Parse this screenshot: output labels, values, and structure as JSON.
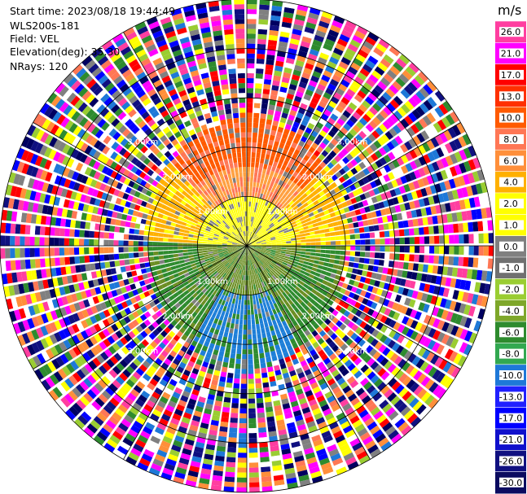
{
  "header": {
    "start_time": "Start time: 2023/08/18 19:44:49",
    "instrument": "WLS200s-181",
    "field": "Field: VEL",
    "elevation": "Elevation(deg): 35.30",
    "nrays": "NRays: 120"
  },
  "chart_data": {
    "type": "polar-ppi",
    "field": "VEL",
    "unit": "m/s",
    "nrays": 120,
    "elevation_deg": 35.3,
    "range_ring_km": [
      1.0,
      2.0,
      3.0
    ],
    "range_ring_labels": [
      "1.00km",
      "2.00km",
      "3.00km"
    ],
    "max_range_km": 5.0,
    "colorbar": {
      "unit": "m/s",
      "ticks": [
        26.0,
        21.0,
        17.0,
        13.0,
        10.0,
        8.0,
        6.0,
        4.0,
        2.0,
        1.0,
        0.0,
        -1.0,
        -2.0,
        -4.0,
        -6.0,
        -8.0,
        -10.0,
        -13.0,
        -17.0,
        -21.0,
        -26.0,
        -30.0
      ],
      "tick_labels": [
        "26.0",
        "21.0",
        "17.0",
        "13.0",
        "10.0",
        "8.0",
        "6.0",
        "4.0",
        "2.0",
        "1.0",
        "0.0",
        "-1.0",
        "-2.0",
        "-4.0",
        "-6.0",
        "-8.0",
        "-10.0",
        "-13.0",
        "-17.0",
        "-21.0",
        "-26.0",
        "-30.0"
      ],
      "colors": [
        "#ff3ea0",
        "#ff00ff",
        "#ff0000",
        "#ff3000",
        "#ff5a00",
        "#ff7755",
        "#ff8f3a",
        "#ffb000",
        "#ffff00",
        "#ffff00",
        "#808080",
        "#707070",
        "#9acd32",
        "#7ea72a",
        "#2e8b2e",
        "#32a850",
        "#1e78d8",
        "#2020ff",
        "#0000ff",
        "#1010cc",
        "#101080",
        "#0b0b60"
      ]
    },
    "pattern": {
      "receding_sector": "north",
      "approaching_sector": "south",
      "near_north_color": "#ffff00",
      "mid_north_color": "#ffa040",
      "near_south_color": "#6b8e23",
      "mid_south_color": "#1e7fd8",
      "outer_noise": true
    }
  }
}
